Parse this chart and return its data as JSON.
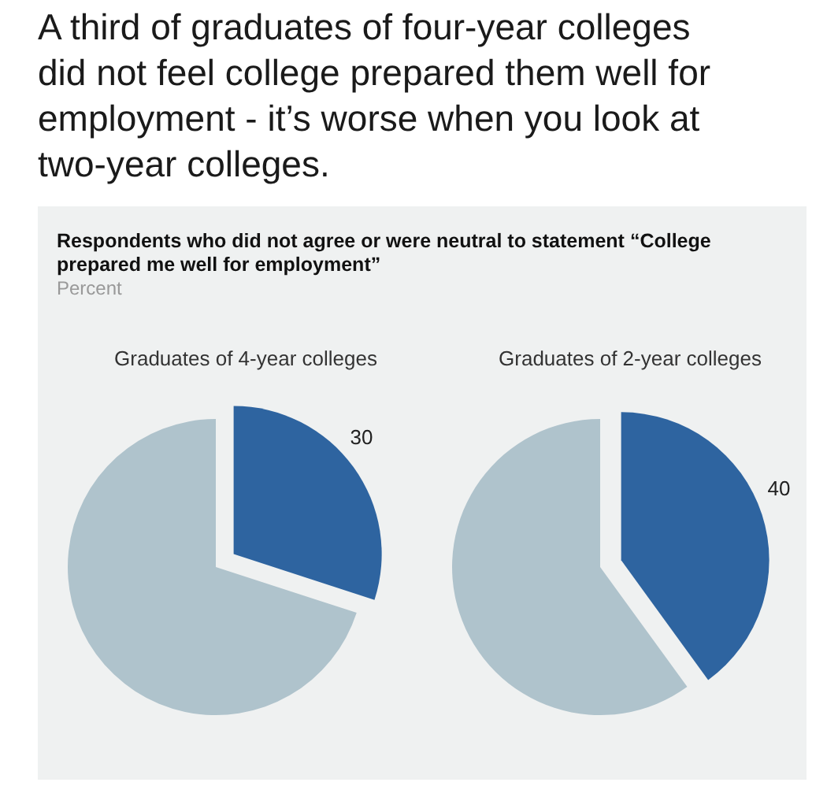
{
  "chart_data": [
    {
      "type": "pie",
      "title": "Graduates of 4-year colleges",
      "categories": [
        null,
        null
      ],
      "values": [
        30,
        70
      ],
      "colors": [
        "#2e64a0",
        "#afc3cc"
      ],
      "value_labels": [
        "30",
        null
      ],
      "annotations": [
        "A third of graduates of four-year colleges did not feel college prepared them well for employment - it’s worse when you look at two-year colleges.",
        "Respondents who did not agree or were neutral to statement “College prepared me well for employment”",
        "Percent"
      ]
    },
    {
      "type": "pie",
      "title": "Graduates of 2-year colleges",
      "categories": [
        null,
        null
      ],
      "values": [
        40,
        60
      ],
      "colors": [
        "#2e64a0",
        "#afc3cc"
      ],
      "value_labels": [
        "40",
        null
      ]
    }
  ]
}
